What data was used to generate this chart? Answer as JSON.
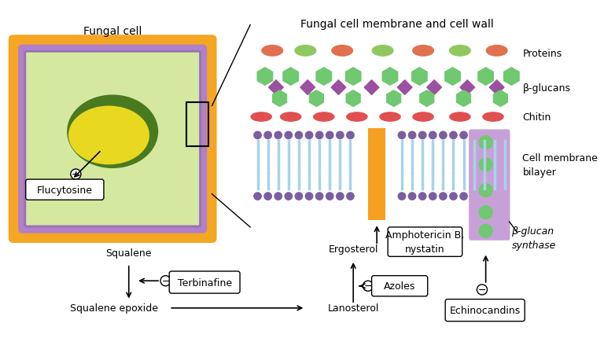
{
  "title_left": "Fungal cell",
  "title_right": "Fungal cell membrane and cell wall",
  "bg_color": "#ffffff",
  "outer_cell_color": "#F5A623",
  "inner_cell_color": "#C8A0D8",
  "inner2_cell_color": "#B090C8",
  "cytoplasm_color": "#D4E8A0",
  "nucleus_outer_color": "#5A8A30",
  "nucleus_inner_color": "#E8D820",
  "label_flucytosine": "Flucytosine",
  "label_squalene": "Squalene",
  "label_squalene_epoxide": "Squalene epoxide",
  "label_lanosterol": "Lanosterol",
  "label_ergosterol": "Ergosterol",
  "label_terbinafine": "Terbinafine",
  "label_azoles": "Azoles",
  "label_amphotericin": "Amphotericin B,\nnystatin",
  "label_echinocandins": "Echinocandins",
  "label_beta_glucan": "β-glucan\nsynthase",
  "label_proteins": "Proteins",
  "label_beta_glucans": "β-glucans",
  "label_chitin": "Chitin",
  "label_membrane": "Cell membrane\nbilayer",
  "membrane_top_color": "#9B9BB0",
  "lipid_head_color": "#7B5EA0",
  "lipid_tail_color": "#A8D4E8",
  "chitin_color": "#E05050",
  "beta_glucan_green": "#70C870",
  "beta_glucan_purple": "#9B50A0",
  "protein_red": "#E07050",
  "protein_green": "#90C860",
  "ergosterol_color": "#F5A020",
  "beta_glucan_synthase_color": "#C8A0D8",
  "font_size": 9,
  "title_font_size": 10
}
